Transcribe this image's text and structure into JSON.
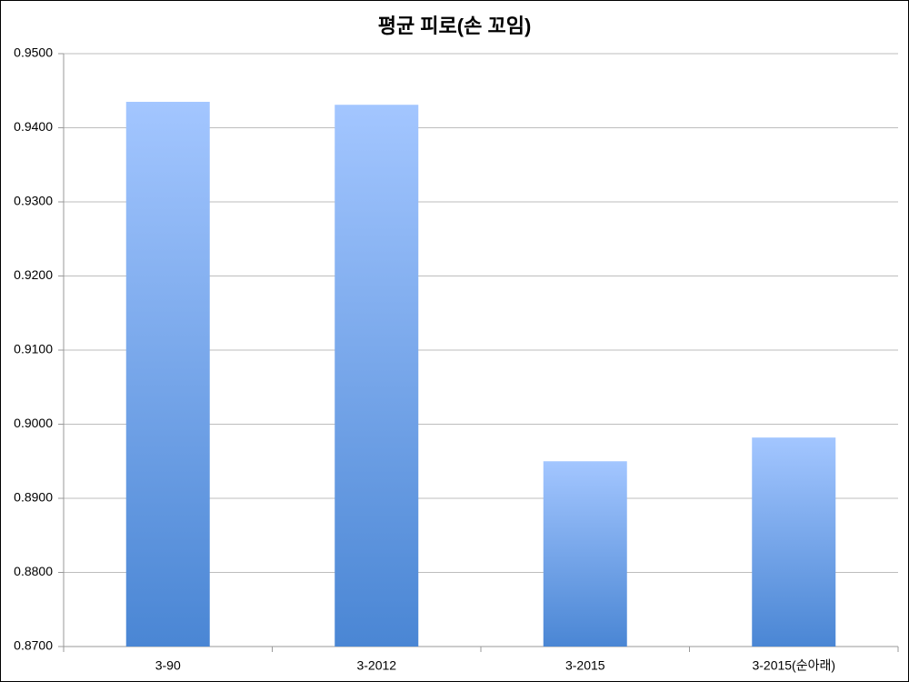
{
  "chart_data": {
    "type": "bar",
    "title": "평균 피로(손 꼬임)",
    "categories": [
      "3-90",
      "3-2012",
      "3-2015",
      "3-2015(순아래)"
    ],
    "values": [
      0.9435,
      0.9431,
      0.895,
      0.8982
    ],
    "color": "#4a86d4",
    "ylim": [
      0.87,
      0.95
    ],
    "yticks": [
      {
        "value": 0.87,
        "label": "0.8700"
      },
      {
        "value": 0.88,
        "label": "0.8800"
      },
      {
        "value": 0.89,
        "label": "0.8900"
      },
      {
        "value": 0.9,
        "label": "0.9000"
      },
      {
        "value": 0.91,
        "label": "0.9100"
      },
      {
        "value": 0.92,
        "label": "0.9200"
      },
      {
        "value": 0.93,
        "label": "0.9300"
      },
      {
        "value": 0.94,
        "label": "0.9400"
      },
      {
        "value": 0.95,
        "label": "0.9500"
      }
    ],
    "grid": true
  }
}
